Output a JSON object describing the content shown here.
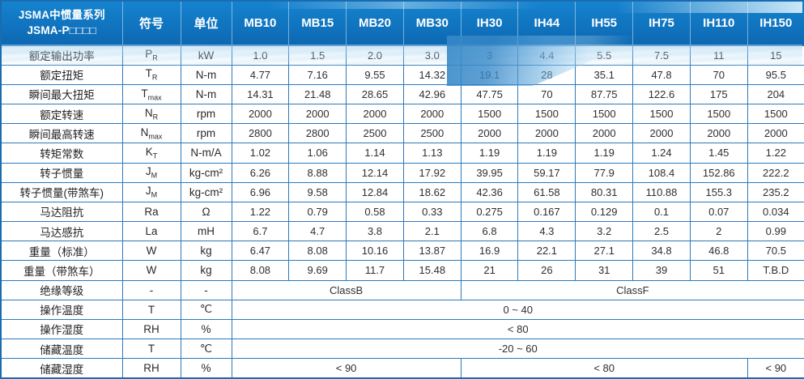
{
  "colors": {
    "header_blue_top": "#1583cf",
    "header_blue_bottom": "#0d68b2",
    "grid_blue": "#2b79bd",
    "outer_border_blue": "#1a6cb2",
    "wave_light_blue": "#aed6f0",
    "wave_mid_blue": "#4a96d0",
    "header_text": "#ffffff",
    "body_text": "#2f2f2f"
  },
  "table": {
    "header": {
      "series_title_line1": "JSMA中惯量系列",
      "series_title_line2": "JSMA-P□□□□",
      "symbol_col": "符号",
      "unit_col": "单位"
    },
    "models": [
      "MB10",
      "MB15",
      "MB20",
      "MB30",
      "IH30",
      "IH44",
      "IH55",
      "IH75",
      "IH110",
      "IH150"
    ],
    "rows": [
      {
        "label": "额定输出功率",
        "symbol": {
          "base": "P",
          "sub": "R"
        },
        "unit": "kW",
        "values": [
          "1.0",
          "1.5",
          "2.0",
          "3.0",
          "3",
          "4.4",
          "5.5",
          "7.5",
          "11",
          "15"
        ]
      },
      {
        "label": "额定扭矩",
        "symbol": {
          "base": "T",
          "sub": "R"
        },
        "unit": "N-m",
        "values": [
          "4.77",
          "7.16",
          "9.55",
          "14.32",
          "19.1",
          "28",
          "35.1",
          "47.8",
          "70",
          "95.5"
        ]
      },
      {
        "label": "瞬间最大扭矩",
        "symbol": {
          "base": "T",
          "sub": "max"
        },
        "unit": "N-m",
        "values": [
          "14.31",
          "21.48",
          "28.65",
          "42.96",
          "47.75",
          "70",
          "87.75",
          "122.6",
          "175",
          "204"
        ]
      },
      {
        "label": "额定转速",
        "symbol": {
          "base": "N",
          "sub": "R"
        },
        "unit": "rpm",
        "values": [
          "2000",
          "2000",
          "2000",
          "2000",
          "1500",
          "1500",
          "1500",
          "1500",
          "1500",
          "1500"
        ]
      },
      {
        "label": "瞬间最高转速",
        "symbol": {
          "base": "N",
          "sub": "max"
        },
        "unit": "rpm",
        "values": [
          "2800",
          "2800",
          "2500",
          "2500",
          "2000",
          "2000",
          "2000",
          "2000",
          "2000",
          "2000"
        ]
      },
      {
        "label": "转矩常数",
        "symbol": {
          "base": "K",
          "sub": "T"
        },
        "unit": "N-m/A",
        "values": [
          "1.02",
          "1.06",
          "1.14",
          "1.13",
          "1.19",
          "1.19",
          "1.19",
          "1.24",
          "1.45",
          "1.22"
        ]
      },
      {
        "label": "转子惯量",
        "symbol": {
          "base": "J",
          "sub": "M"
        },
        "unit": "kg-cm²",
        "values": [
          "6.26",
          "8.88",
          "12.14",
          "17.92",
          "39.95",
          "59.17",
          "77.9",
          "108.4",
          "152.86",
          "222.2"
        ]
      },
      {
        "label": "转子惯量(带煞车)",
        "symbol": {
          "base": "J",
          "sub": "M"
        },
        "unit": "kg-cm²",
        "values": [
          "6.96",
          "9.58",
          "12.84",
          "18.62",
          "42.36",
          "61.58",
          "80.31",
          "110.88",
          "155.3",
          "235.2"
        ]
      },
      {
        "label": "马达阻抗",
        "symbol": {
          "base": "Ra",
          "sub": ""
        },
        "unit": "Ω",
        "values": [
          "1.22",
          "0.79",
          "0.58",
          "0.33",
          "0.275",
          "0.167",
          "0.129",
          "0.1",
          "0.07",
          "0.034"
        ]
      },
      {
        "label": "马达感抗",
        "symbol": {
          "base": "La",
          "sub": ""
        },
        "unit": "mH",
        "values": [
          "6.7",
          "4.7",
          "3.8",
          "2.1",
          "6.8",
          "4.3",
          "3.2",
          "2.5",
          "2",
          "0.99"
        ]
      },
      {
        "label": "重量（标准）",
        "symbol": {
          "base": "W",
          "sub": ""
        },
        "unit": "kg",
        "values": [
          "6.47",
          "8.08",
          "10.16",
          "13.87",
          "16.9",
          "22.1",
          "27.1",
          "34.8",
          "46.8",
          "70.5"
        ]
      },
      {
        "label": "重量（带煞车）",
        "symbol": {
          "base": "W",
          "sub": ""
        },
        "unit": "kg",
        "values": [
          "8.08",
          "9.69",
          "11.7",
          "15.48",
          "21",
          "26",
          "31",
          "39",
          "51",
          "T.B.D"
        ]
      },
      {
        "label": "绝缘等级",
        "symbol": {
          "base": "-",
          "sub": ""
        },
        "unit": "-",
        "spans": [
          {
            "text": "ClassB",
            "span": 4
          },
          {
            "text": "ClassF",
            "span": 6
          }
        ]
      },
      {
        "label": "操作温度",
        "symbol": {
          "base": "T",
          "sub": ""
        },
        "unit": "℃",
        "spans": [
          {
            "text": "0 ~ 40",
            "span": 10
          }
        ]
      },
      {
        "label": "操作湿度",
        "symbol": {
          "base": "RH",
          "sub": ""
        },
        "unit": "%",
        "spans": [
          {
            "text": "< 80",
            "span": 10
          }
        ]
      },
      {
        "label": "储藏温度",
        "symbol": {
          "base": "T",
          "sub": ""
        },
        "unit": "℃",
        "spans": [
          {
            "text": "-20 ~ 60",
            "span": 10
          }
        ]
      },
      {
        "label": "储藏湿度",
        "symbol": {
          "base": "RH",
          "sub": ""
        },
        "unit": "%",
        "spans": [
          {
            "text": "< 90",
            "span": 4
          },
          {
            "text": "< 80",
            "span": 5
          },
          {
            "text": "< 90",
            "span": 1
          }
        ]
      }
    ]
  }
}
